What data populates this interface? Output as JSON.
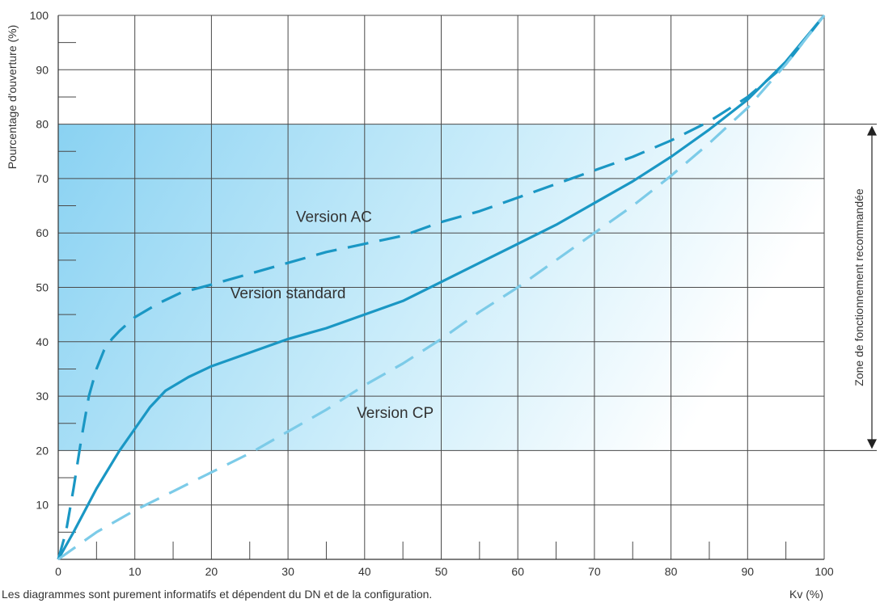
{
  "chart_data": {
    "type": "line",
    "title": "",
    "xlabel": "Kv (%)",
    "ylabel": "Pourcentage d'ouverture (%)",
    "xlim": [
      0,
      100
    ],
    "ylim": [
      0,
      100
    ],
    "x_ticks": [
      "0",
      "10",
      "20",
      "30",
      "40",
      "50",
      "60",
      "70",
      "80",
      "90",
      "100"
    ],
    "y_ticks": [
      "10",
      "20",
      "30",
      "40",
      "50",
      "60",
      "70",
      "80",
      "90",
      "100"
    ],
    "grid": true,
    "footnote": "Les diagrammes sont purement informatifs et dépendent du DN et de la configuration.",
    "zone": {
      "label": "Zone de fonctionnement recommandée",
      "y_from": 20,
      "y_to": 80,
      "color": "#8ad2f2"
    },
    "series": [
      {
        "name": "Version standard",
        "style": "solid",
        "color": "#1a97c4",
        "label_at": [
          30,
          48
        ],
        "points": [
          [
            0,
            0
          ],
          [
            2,
            5
          ],
          [
            5,
            13
          ],
          [
            8,
            20
          ],
          [
            10,
            24
          ],
          [
            12,
            28
          ],
          [
            14,
            31
          ],
          [
            17,
            33.5
          ],
          [
            20,
            35.5
          ],
          [
            25,
            38
          ],
          [
            30,
            40.5
          ],
          [
            35,
            42.5
          ],
          [
            40,
            45
          ],
          [
            45,
            47.5
          ],
          [
            50,
            51
          ],
          [
            55,
            54.5
          ],
          [
            60,
            58
          ],
          [
            65,
            61.5
          ],
          [
            70,
            65.5
          ],
          [
            75,
            69.5
          ],
          [
            80,
            74
          ],
          [
            85,
            79
          ],
          [
            90,
            84.5
          ],
          [
            95,
            91.5
          ],
          [
            100,
            100
          ]
        ]
      },
      {
        "name": "Version AC",
        "style": "dashed",
        "color": "#1a97c4",
        "label_at": [
          36,
          62
        ],
        "points": [
          [
            0,
            0
          ],
          [
            1,
            5
          ],
          [
            2,
            13
          ],
          [
            3,
            22
          ],
          [
            4,
            30
          ],
          [
            5,
            35
          ],
          [
            6,
            38.5
          ],
          [
            7,
            40.5
          ],
          [
            8,
            42
          ],
          [
            10,
            44.5
          ],
          [
            13,
            47
          ],
          [
            16,
            49
          ],
          [
            20,
            50.5
          ],
          [
            25,
            52.5
          ],
          [
            30,
            54.5
          ],
          [
            35,
            56.5
          ],
          [
            40,
            58
          ],
          [
            45,
            59.5
          ],
          [
            50,
            62
          ],
          [
            55,
            64
          ],
          [
            60,
            66.5
          ],
          [
            65,
            69
          ],
          [
            70,
            71.5
          ],
          [
            75,
            74
          ],
          [
            80,
            77
          ],
          [
            85,
            80.5
          ],
          [
            90,
            85
          ],
          [
            95,
            91
          ],
          [
            100,
            100
          ]
        ]
      },
      {
        "name": "Version CP",
        "style": "dashed",
        "color": "#7ccbe8",
        "label_at": [
          44,
          26
        ],
        "points": [
          [
            0,
            0
          ],
          [
            5,
            5
          ],
          [
            10,
            9
          ],
          [
            15,
            12.5
          ],
          [
            20,
            16
          ],
          [
            25,
            19.5
          ],
          [
            30,
            23.5
          ],
          [
            35,
            27.5
          ],
          [
            40,
            32
          ],
          [
            45,
            36
          ],
          [
            50,
            40.5
          ],
          [
            55,
            45.5
          ],
          [
            60,
            50
          ],
          [
            65,
            55
          ],
          [
            70,
            60
          ],
          [
            75,
            65
          ],
          [
            80,
            70.5
          ],
          [
            85,
            76.5
          ],
          [
            90,
            83
          ],
          [
            95,
            91
          ],
          [
            100,
            100
          ]
        ]
      }
    ]
  }
}
